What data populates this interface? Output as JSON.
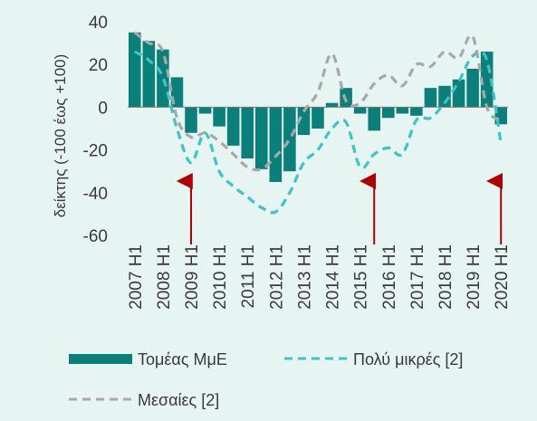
{
  "chart_data": {
    "type": "bar",
    "title": "",
    "xlabel": "",
    "ylabel": "δείκτης (-100 έως +100)",
    "ylim": [
      -60,
      40
    ],
    "yticks": [
      40,
      20,
      0,
      -20,
      -40,
      -60
    ],
    "x": [
      "2007 H1",
      "2007 H2",
      "2008 H1",
      "2008 H2",
      "2009 H1",
      "2009 H2",
      "2010 H1",
      "2010 H2",
      "2011 H1",
      "2011 H2",
      "2012 H1",
      "2012 H2",
      "2013 H1",
      "2013 H2",
      "2014 H1",
      "2014 H2",
      "2015 H1",
      "2015 H2",
      "2016 H1",
      "2016 H2",
      "2017 H1",
      "2017 H2",
      "2018 H1",
      "2018 H2",
      "2019 H1",
      "2019 H2",
      "2020 H1"
    ],
    "tick_labels": [
      "2007 H1",
      "2008 H1",
      "2009 H1",
      "2010 H1",
      "2011 H1",
      "2012 H1",
      "2013 H1",
      "2014 H1",
      "2015 H1",
      "2016 H1",
      "2017 H1",
      "2018 H1",
      "2019 H1",
      "2020 H1"
    ],
    "tick_indices": [
      0,
      2,
      4,
      6,
      8,
      10,
      12,
      14,
      16,
      18,
      20,
      22,
      24,
      26
    ],
    "series": [
      {
        "name": "Τομέας ΜμΕ",
        "kind": "bar",
        "color": "#0b7f7a",
        "values": [
          35,
          31,
          27,
          14,
          -12,
          -3,
          -9,
          -18,
          -24,
          -29,
          -35,
          -30,
          -13,
          -10,
          2,
          9,
          -3,
          -11,
          -5,
          -3,
          -4,
          9,
          10,
          13,
          18,
          26,
          -8
        ]
      },
      {
        "name": "Πολύ μικρές [2]",
        "kind": "line",
        "style": "dashed",
        "color": "#3cc5c8",
        "values": [
          26,
          22,
          14,
          -10,
          -26,
          -12,
          -30,
          -37,
          -42,
          -47,
          -49,
          -40,
          -26,
          -20,
          -10,
          -7,
          -28,
          -22,
          -19,
          -22,
          -6,
          -5,
          2,
          12,
          24,
          22,
          -17
        ]
      },
      {
        "name": "Μεσαίες [2]",
        "kind": "line",
        "style": "dashed",
        "color": "#a8a8a8",
        "values": [
          35,
          30,
          26,
          -5,
          -14,
          -12,
          -16,
          -22,
          -28,
          -29,
          -23,
          -15,
          -2,
          7,
          25,
          3,
          2,
          11,
          15,
          10,
          20,
          19,
          26,
          23,
          33,
          0,
          -6
        ]
      }
    ],
    "annotations": [
      {
        "type": "arrow",
        "x": "2009 H1",
        "direction": "up",
        "color": "#b00000"
      },
      {
        "type": "arrow",
        "x": "2015 H2",
        "direction": "up",
        "color": "#b00000"
      },
      {
        "type": "arrow",
        "x": "2020 H1",
        "direction": "up",
        "color": "#b00000"
      }
    ],
    "grid": false,
    "legend": "bottom"
  }
}
